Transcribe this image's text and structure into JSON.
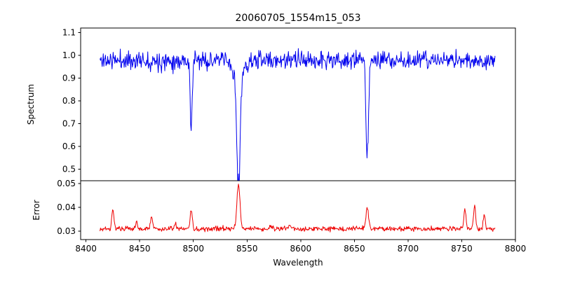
{
  "chart_data": {
    "type": "line",
    "title": "20060705_1554m15_053",
    "xlabel": "Wavelength",
    "xlim": [
      8395,
      8800
    ],
    "x_data_range": [
      8413,
      8781
    ],
    "x_ticks": [
      "8400",
      "8450",
      "8500",
      "8550",
      "8600",
      "8650",
      "8700",
      "8750",
      "8800"
    ],
    "n_points": 720,
    "seed": 11,
    "grid": false,
    "legend": "none",
    "panels": [
      {
        "ylabel": "Spectrum",
        "ylim": [
          0.45,
          1.12
        ],
        "yticks": [
          "0.5",
          "0.6",
          "0.7",
          "0.8",
          "0.9",
          "1.0",
          "1.1"
        ],
        "series": {
          "name": "spectrum",
          "color": "#0000ee",
          "baseline": 0.978,
          "noise_sigma": 0.02,
          "absorption_lines": [
            {
              "center": 8498,
              "min": 0.67,
              "sigma": 0.9
            },
            {
              "center": 8542,
              "min": 0.48,
              "sigma": 1.4,
              "wing_depth": 0.1,
              "wing_sigma": 4.5
            },
            {
              "center": 8662,
              "min": 0.55,
              "sigma": 1.1
            }
          ]
        }
      },
      {
        "ylabel": "Error",
        "ylim": [
          0.0265,
          0.0512
        ],
        "yticks": [
          "0.03",
          "0.04",
          "0.05"
        ],
        "series": {
          "name": "error",
          "color": "#ee0000",
          "baseline": 0.031,
          "noise_sigma": 0.0005,
          "peaks": [
            {
              "center": 8425,
              "value": 0.039,
              "sigma": 1.0
            },
            {
              "center": 8447,
              "value": 0.034,
              "sigma": 0.9
            },
            {
              "center": 8461,
              "value": 0.036,
              "sigma": 1.0
            },
            {
              "center": 8483,
              "value": 0.033,
              "sigma": 0.9
            },
            {
              "center": 8498,
              "value": 0.0385,
              "sigma": 1.0
            },
            {
              "center": 8542,
              "value": 0.0498,
              "sigma": 1.4
            },
            {
              "center": 8572,
              "value": 0.0325,
              "sigma": 1.0
            },
            {
              "center": 8590,
              "value": 0.0325,
              "sigma": 1.0
            },
            {
              "center": 8662,
              "value": 0.04,
              "sigma": 1.2
            },
            {
              "center": 8753,
              "value": 0.0395,
              "sigma": 1.0
            },
            {
              "center": 8762,
              "value": 0.041,
              "sigma": 1.0
            },
            {
              "center": 8771,
              "value": 0.037,
              "sigma": 0.9
            }
          ]
        }
      }
    ]
  }
}
